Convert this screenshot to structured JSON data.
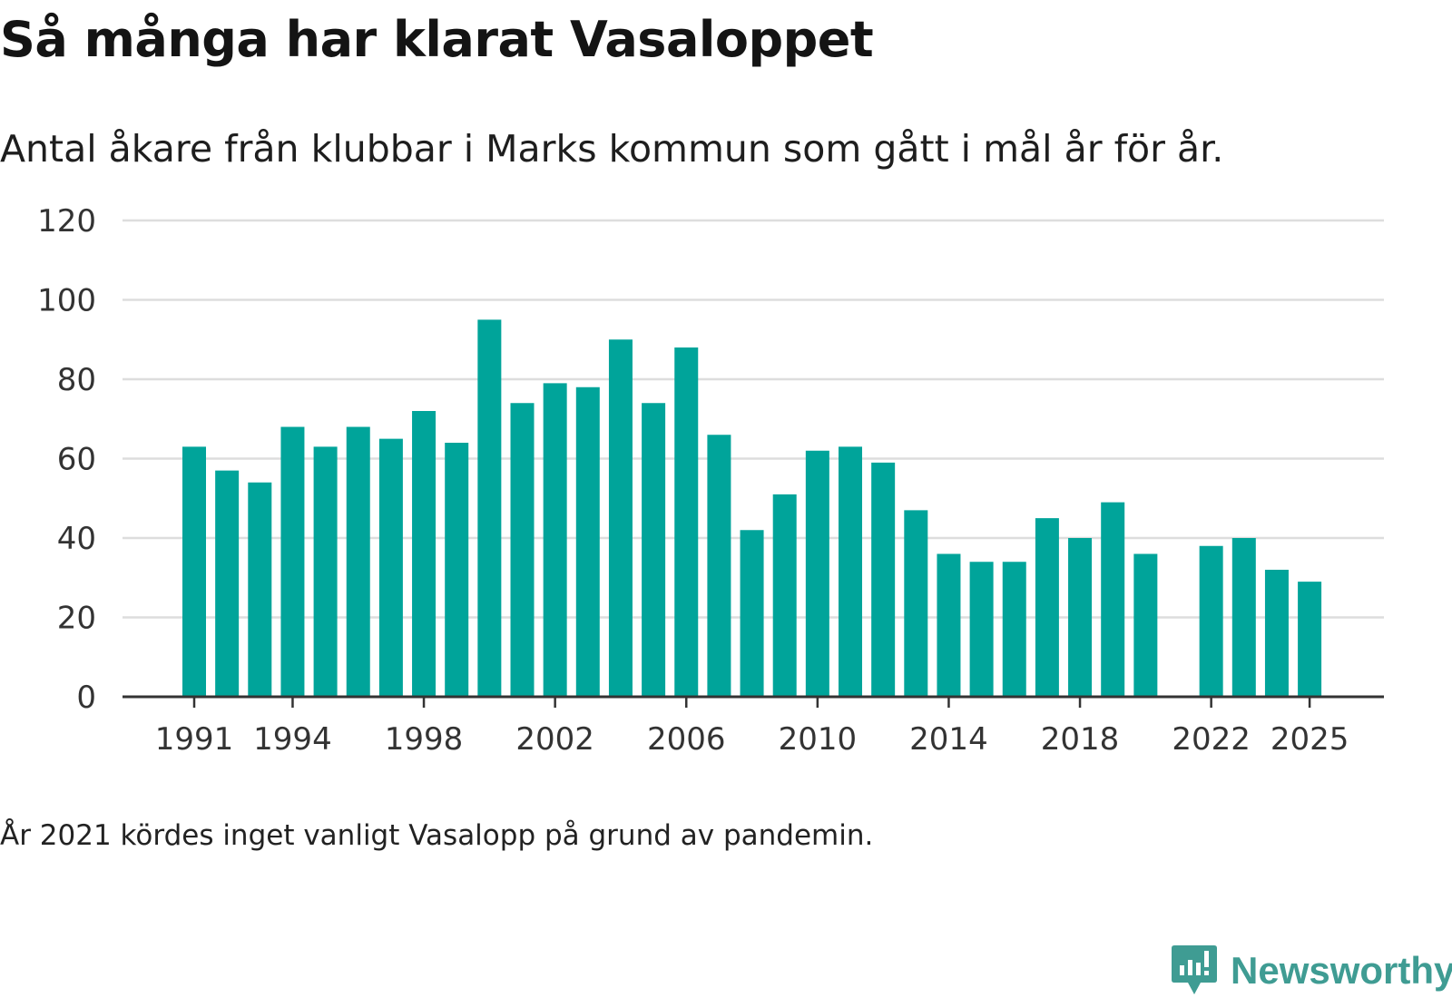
{
  "header": {
    "title": "Så många har klarat Vasaloppet",
    "subtitle": "Antal åkare från klubbar i Marks kommun som gått i mål år för år."
  },
  "footnote": "År 2021 kördes inget vanligt Vasalopp på grund av pandemin.",
  "brand": {
    "name": "Newsworthy",
    "icon": "newsworthy-logo-icon",
    "color": "#3f9c93"
  },
  "colors": {
    "bar": "#00a49a",
    "grid": "#dddddd",
    "axis": "#333333"
  },
  "chart_data": {
    "type": "bar",
    "title": "Så många har klarat Vasaloppet",
    "subtitle": "Antal åkare från klubbar i Marks kommun som gått i mål år för år.",
    "xlabel": "",
    "ylabel": "",
    "ylim": [
      0,
      120
    ],
    "yticks": [
      0,
      20,
      40,
      60,
      80,
      100,
      120
    ],
    "xticks": [
      1991,
      1994,
      1998,
      2002,
      2006,
      2010,
      2014,
      2018,
      2022,
      2025
    ],
    "grid": true,
    "categories": [
      1991,
      1992,
      1993,
      1994,
      1995,
      1996,
      1997,
      1998,
      1999,
      2000,
      2001,
      2002,
      2003,
      2004,
      2005,
      2006,
      2007,
      2008,
      2009,
      2010,
      2011,
      2012,
      2013,
      2014,
      2015,
      2016,
      2017,
      2018,
      2019,
      2020,
      2021,
      2022,
      2023,
      2024,
      2025
    ],
    "values": [
      63,
      57,
      54,
      68,
      63,
      68,
      65,
      72,
      64,
      95,
      74,
      79,
      78,
      90,
      74,
      88,
      66,
      42,
      51,
      62,
      63,
      59,
      47,
      36,
      34,
      34,
      45,
      40,
      49,
      36,
      null,
      38,
      40,
      32,
      29
    ],
    "series": [
      {
        "name": "Antal åkare i mål",
        "values": [
          63,
          57,
          54,
          68,
          63,
          68,
          65,
          72,
          64,
          95,
          74,
          79,
          78,
          90,
          74,
          88,
          66,
          42,
          51,
          62,
          63,
          59,
          47,
          36,
          34,
          34,
          45,
          40,
          49,
          36,
          null,
          38,
          40,
          32,
          29
        ]
      }
    ]
  }
}
